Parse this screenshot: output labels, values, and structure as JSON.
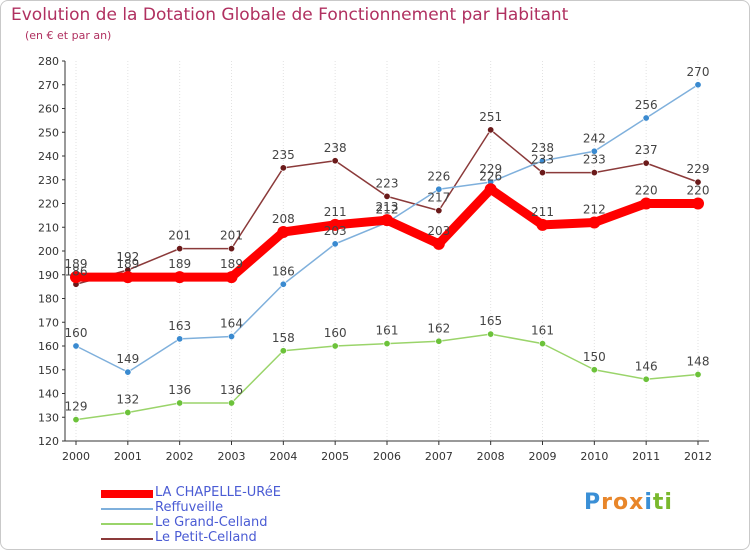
{
  "title": "Evolution de la Dotation Globale de Fonctionnement par Habitant",
  "subtitle": "(en € et par an)",
  "logo": {
    "text": "Proxiti",
    "letters": [
      "P",
      "r",
      "o",
      "x",
      "i",
      "t",
      "i"
    ],
    "colors": [
      "#3a8fd6",
      "#e8862a",
      "#e8862a",
      "#e8862a",
      "#3a8fd6",
      "#7ab82d",
      "#7ab82d"
    ]
  },
  "chart_data": {
    "type": "line",
    "x": [
      2000,
      2001,
      2002,
      2003,
      2004,
      2005,
      2006,
      2007,
      2008,
      2009,
      2010,
      2011,
      2012
    ],
    "ylim": [
      120,
      280
    ],
    "yticks": [
      120,
      130,
      140,
      150,
      160,
      170,
      180,
      190,
      200,
      210,
      220,
      230,
      240,
      250,
      260,
      270,
      280
    ],
    "grid": "vertical",
    "legend_position": "bottom-left",
    "series": [
      {
        "name": "Le Petit-Celland",
        "color": "#8b3a3a",
        "marker": "#6b1a1a",
        "values": [
          186,
          192,
          201,
          201,
          235,
          238,
          223,
          217,
          251,
          233,
          233,
          237,
          229
        ],
        "labels": [
          "186",
          "192",
          "201",
          "201",
          "235",
          "238",
          "223",
          "217",
          "251",
          "233",
          "233",
          "237",
          "229"
        ]
      },
      {
        "name": "Le Grand-Celland",
        "color": "#9ad46a",
        "marker": "#6cc23a",
        "values": [
          129,
          132,
          136,
          136,
          158,
          160,
          161,
          162,
          165,
          161,
          150,
          146,
          148
        ],
        "labels": [
          "129",
          "132",
          "136",
          "136",
          "158",
          "160",
          "161",
          "162",
          "165",
          "161",
          "150",
          "146",
          "148"
        ]
      },
      {
        "name": "Reffuveille",
        "color": "#7fb0dc",
        "marker": "#3a8ad0",
        "values": [
          160,
          149,
          163,
          164,
          186,
          203,
          212,
          226,
          229,
          238,
          242,
          256,
          270
        ],
        "labels": [
          "160",
          "149",
          "163",
          "164",
          "186",
          "203",
          "212",
          "226",
          "229",
          "238",
          "242",
          "256",
          "270"
        ]
      },
      {
        "name": "LA CHAPELLE-URéE",
        "color": "#ff0000",
        "marker": "#ff0000",
        "values": [
          189,
          189,
          189,
          189,
          208,
          211,
          213,
          203,
          226,
          211,
          212,
          220,
          220
        ],
        "labels": [
          "189",
          "189",
          "189",
          "189",
          "208",
          "211",
          "213",
          "203",
          "226",
          "211",
          "212",
          "220",
          "220"
        ]
      }
    ]
  },
  "legend": [
    {
      "label": "LA CHAPELLE-URéE",
      "color": "#ff0000",
      "thick": true
    },
    {
      "label": "Reffuveille",
      "color": "#7fb0dc",
      "thick": false
    },
    {
      "label": "Le Grand-Celland",
      "color": "#9ad46a",
      "thick": false
    },
    {
      "label": "Le Petit-Celland",
      "color": "#8b3a3a",
      "thick": false
    }
  ]
}
